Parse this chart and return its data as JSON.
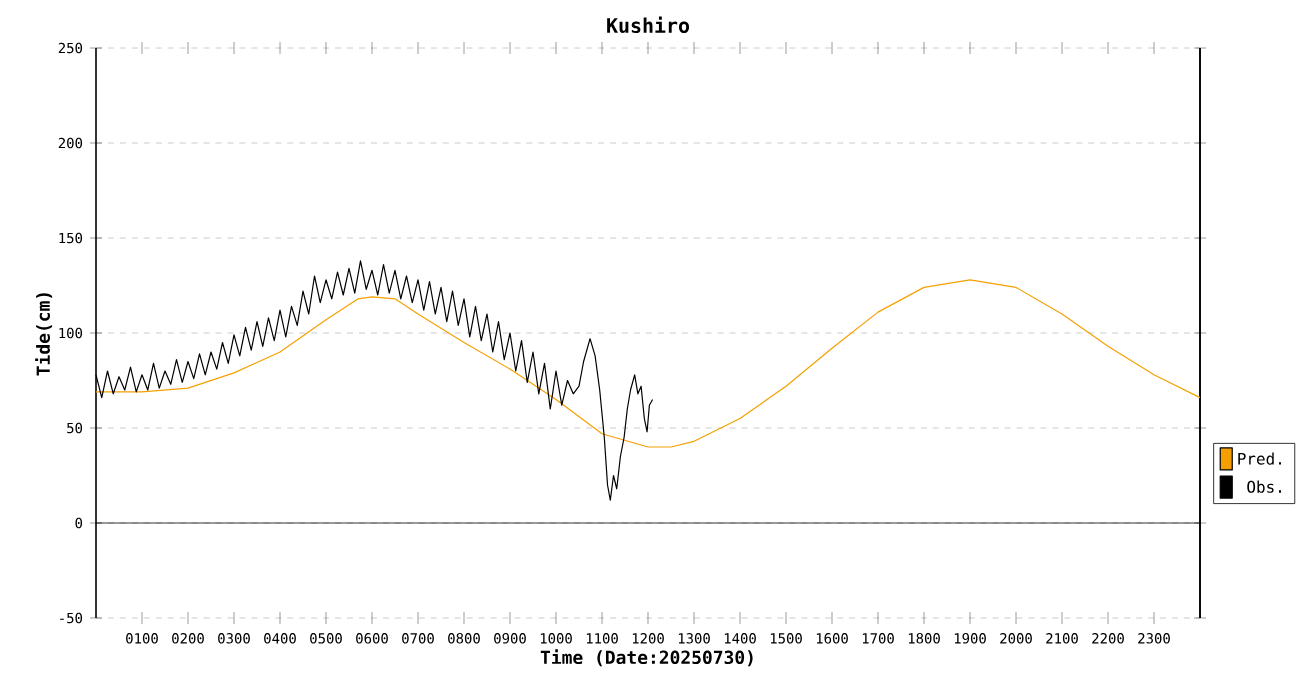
{
  "chart_data": {
    "type": "line",
    "title": "Kushiro",
    "xlabel": "Time (Date:20250730)",
    "ylabel": "Tide(cm)",
    "xlim": [
      0,
      2400
    ],
    "ylim": [
      -50,
      250
    ],
    "xticks": [
      {
        "value": 100,
        "label": "0100"
      },
      {
        "value": 200,
        "label": "0200"
      },
      {
        "value": 300,
        "label": "0300"
      },
      {
        "value": 400,
        "label": "0400"
      },
      {
        "value": 500,
        "label": "0500"
      },
      {
        "value": 600,
        "label": "0600"
      },
      {
        "value": 700,
        "label": "0700"
      },
      {
        "value": 800,
        "label": "0800"
      },
      {
        "value": 900,
        "label": "0900"
      },
      {
        "value": 1000,
        "label": "1000"
      },
      {
        "value": 1100,
        "label": "1100"
      },
      {
        "value": 1200,
        "label": "1200"
      },
      {
        "value": 1300,
        "label": "1300"
      },
      {
        "value": 1400,
        "label": "1400"
      },
      {
        "value": 1500,
        "label": "1500"
      },
      {
        "value": 1600,
        "label": "1600"
      },
      {
        "value": 1700,
        "label": "1700"
      },
      {
        "value": 1800,
        "label": "1800"
      },
      {
        "value": 1900,
        "label": "1900"
      },
      {
        "value": 2000,
        "label": "2000"
      },
      {
        "value": 2100,
        "label": "2100"
      },
      {
        "value": 2200,
        "label": "2200"
      },
      {
        "value": 2300,
        "label": "2300"
      }
    ],
    "yticks": [
      -50,
      0,
      50,
      100,
      150,
      200,
      250
    ],
    "grid": "y",
    "legend": "bottom right",
    "marker": "none",
    "line_style": "solid",
    "ref_lines": [
      {
        "axis": "y",
        "value": 0,
        "color": "#000000"
      }
    ],
    "series": [
      {
        "name": "Pred.",
        "color": "#f5a000",
        "x": [
          0,
          100,
          200,
          300,
          400,
          500,
          570,
          600,
          650,
          700,
          800,
          900,
          1000,
          1100,
          1200,
          1250,
          1300,
          1400,
          1500,
          1600,
          1700,
          1800,
          1900,
          2000,
          2100,
          2200,
          2300,
          2400
        ],
        "values": [
          69,
          69,
          71,
          79,
          90,
          107,
          118,
          119,
          118,
          110,
          95,
          81,
          65,
          47,
          40,
          40,
          43,
          55,
          72,
          92,
          111,
          124,
          128,
          124,
          110,
          93,
          78,
          66
        ]
      },
      {
        "name": "Obs.",
        "color": "#000000",
        "x": [
          0,
          12.5,
          25,
          37.5,
          50,
          62.5,
          75,
          87.5,
          100,
          112.5,
          125,
          137.5,
          150,
          162.5,
          175,
          187.5,
          200,
          212.5,
          225,
          237.5,
          250,
          262.5,
          275,
          287.5,
          300,
          312.5,
          325,
          337.5,
          350,
          362.5,
          375,
          387.5,
          400,
          412.5,
          425,
          437.5,
          450,
          462.5,
          475,
          487.5,
          500,
          512.5,
          525,
          537.5,
          550,
          562.5,
          575,
          587.5,
          600,
          612.5,
          625,
          637.5,
          650,
          662.5,
          675,
          687.5,
          700,
          712.5,
          725,
          737.5,
          750,
          762.5,
          775,
          787.5,
          800,
          812.5,
          825,
          837.5,
          850,
          862.5,
          875,
          887.5,
          900,
          912.5,
          925,
          937.5,
          950,
          962.5,
          975,
          987.5,
          1000,
          1012.5,
          1025,
          1037.5,
          1050,
          1060,
          1074,
          1085,
          1095,
          1105,
          1112,
          1118,
          1125,
          1132,
          1140,
          1148,
          1155,
          1162,
          1171,
          1178,
          1185,
          1192,
          1198,
          1203,
          1210
        ],
        "values": [
          78,
          66,
          80,
          68,
          77,
          70,
          82,
          69,
          78,
          70,
          84,
          71,
          80,
          73,
          86,
          74,
          85,
          76,
          89,
          78,
          90,
          81,
          95,
          84,
          99,
          88,
          103,
          91,
          106,
          93,
          108,
          96,
          112,
          98,
          114,
          104,
          122,
          110,
          130,
          116,
          128,
          118,
          132,
          120,
          134,
          121,
          138,
          123,
          133,
          120,
          136,
          121,
          133,
          118,
          130,
          116,
          128,
          112,
          127,
          110,
          124,
          106,
          122,
          104,
          118,
          98,
          114,
          96,
          110,
          90,
          106,
          86,
          100,
          80,
          96,
          74,
          90,
          68,
          84,
          60,
          80,
          62,
          75,
          68,
          72,
          85,
          97,
          88,
          70,
          45,
          20,
          12,
          25,
          18,
          35,
          45,
          60,
          70,
          78,
          68,
          72,
          55,
          48,
          62,
          65
        ]
      }
    ]
  }
}
